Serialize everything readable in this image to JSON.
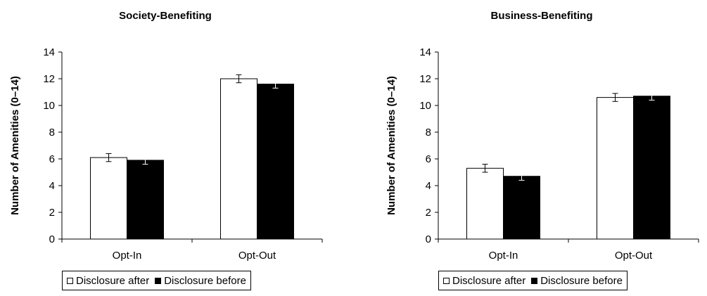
{
  "chart_data": [
    {
      "type": "bar",
      "title": "Society-Benefiting",
      "ylabel": "Number of Amenities (0–14)",
      "xlabel": "",
      "ylim": [
        0,
        14
      ],
      "yticks": [
        "0",
        "2",
        "4",
        "6",
        "8",
        "10",
        "12",
        "14"
      ],
      "categories": [
        "Opt-In",
        "Opt-Out"
      ],
      "series": [
        {
          "name": "Disclosure after",
          "values": [
            6.1,
            12.0
          ],
          "errors": [
            0.3,
            0.3
          ],
          "fill": "#ffffff"
        },
        {
          "name": "Disclosure before",
          "values": [
            5.9,
            11.6
          ],
          "errors": [
            0.3,
            0.3
          ],
          "fill": "#000000"
        }
      ],
      "legend": "bottom",
      "grid": false
    },
    {
      "type": "bar",
      "title": "Business-Benefiting",
      "ylabel": "Number of Amenities (0–14)",
      "xlabel": "",
      "ylim": [
        0,
        14
      ],
      "yticks": [
        "0",
        "2",
        "4",
        "6",
        "8",
        "10",
        "12",
        "14"
      ],
      "categories": [
        "Opt-In",
        "Opt-Out"
      ],
      "series": [
        {
          "name": "Disclosure after",
          "values": [
            5.3,
            10.6
          ],
          "errors": [
            0.3,
            0.3
          ],
          "fill": "#ffffff"
        },
        {
          "name": "Disclosure before",
          "values": [
            4.7,
            10.7
          ],
          "errors": [
            0.3,
            0.3
          ],
          "fill": "#000000"
        }
      ],
      "legend": "bottom",
      "grid": false
    }
  ],
  "legend": {
    "left": {
      "after": "Disclosure after",
      "before": "Disclosure before"
    },
    "right": {
      "after": "Disclosure after",
      "before": "Disclosure before"
    }
  }
}
